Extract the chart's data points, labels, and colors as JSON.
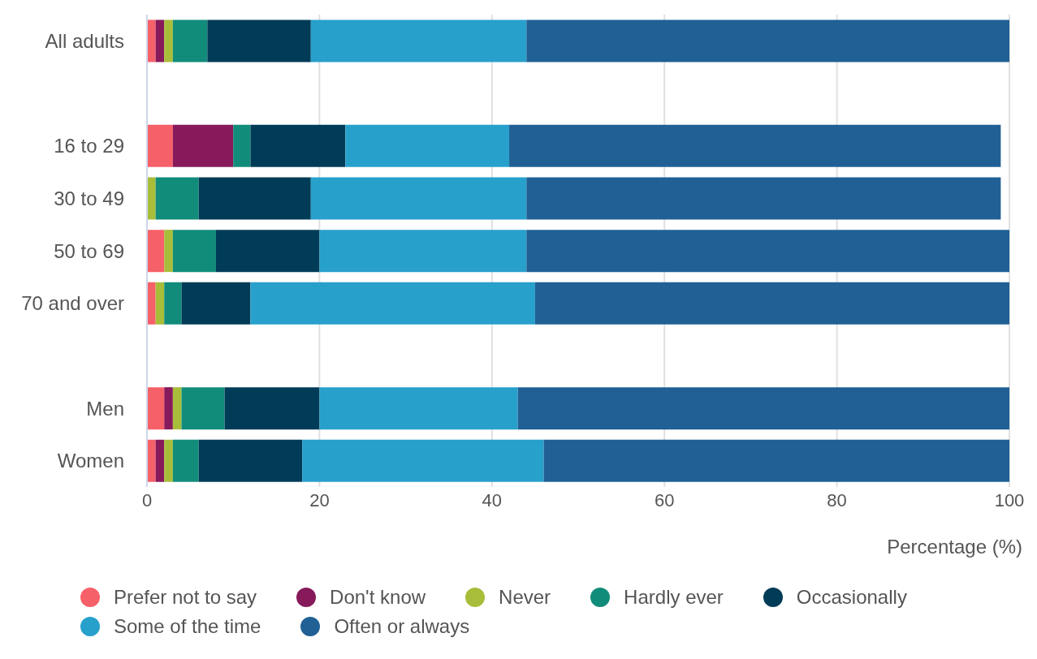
{
  "chart_data": {
    "type": "bar",
    "orientation": "horizontal",
    "stacked": true,
    "xlabel": "Percentage (%)",
    "categories": [
      "All adults",
      null,
      "16 to 29",
      "30 to 49",
      "50 to 69",
      "70 and over",
      null,
      "Men",
      "Women"
    ],
    "series": [
      {
        "name": "Prefer not to say",
        "color": "#f66068",
        "values": [
          1,
          null,
          3,
          0,
          2,
          1,
          null,
          2,
          1
        ]
      },
      {
        "name": "Don't know",
        "color": "#871a5b",
        "values": [
          1,
          null,
          7,
          0,
          0,
          0,
          null,
          1,
          1
        ]
      },
      {
        "name": "Never",
        "color": "#a8bd3a",
        "values": [
          1,
          null,
          0,
          1,
          1,
          1,
          null,
          1,
          1
        ]
      },
      {
        "name": "Hardly ever",
        "color": "#118c7b",
        "values": [
          4,
          null,
          2,
          5,
          5,
          2,
          null,
          5,
          3
        ]
      },
      {
        "name": "Occasionally",
        "color": "#003c57",
        "values": [
          12,
          null,
          11,
          13,
          12,
          8,
          null,
          11,
          12
        ]
      },
      {
        "name": "Some of the time",
        "color": "#27a0cc",
        "values": [
          25,
          null,
          19,
          25,
          24,
          33,
          null,
          23,
          28
        ]
      },
      {
        "name": "Often or always",
        "color": "#206095",
        "values": [
          56,
          null,
          57,
          55,
          56,
          55,
          null,
          57,
          54
        ]
      }
    ],
    "xlim": [
      0,
      100
    ],
    "xticks": [
      0,
      20,
      40,
      60,
      80,
      100
    ],
    "grid": "x",
    "legend": "bottom"
  }
}
